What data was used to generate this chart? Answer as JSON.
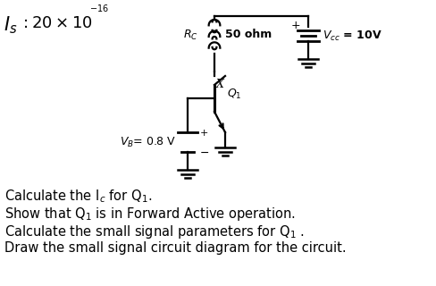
{
  "background_color": "#ffffff",
  "line1": "Calculate the I$_c$ for Q$_1$.",
  "line2": "Show that Q$_1$ is in Forward Active operation.",
  "line3": "Calculate the small signal parameters for Q$_1$ .",
  "line4": "Draw the small signal circuit diagram for the circuit.",
  "text_fontsize": 10.5
}
